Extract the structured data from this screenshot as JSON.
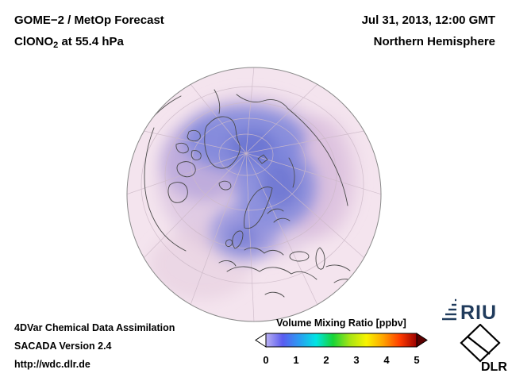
{
  "header": {
    "product": "GOME−2 / MetOp Forecast",
    "species_prefix": "ClONO",
    "species_sub": "2",
    "species_suffix": " at 55.4 hPa",
    "datetime": "Jul 31, 2013, 12:00 GMT",
    "region": "Northern Hemisphere"
  },
  "globe": {
    "base_color": "#f4e4ee",
    "field_low_color": "#cdb3da",
    "field_high_color": "#6670d0"
  },
  "colorbar": {
    "title": "Volume Mixing Ratio [ppbv]",
    "range": [
      0,
      5
    ],
    "tick_labels": [
      "0",
      "1",
      "2",
      "3",
      "4",
      "5"
    ],
    "gradient_colors": [
      "#b9b0f2",
      "#5a5cf0",
      "#2b9cf2",
      "#00e4e4",
      "#17d438",
      "#a6e414",
      "#f8f400",
      "#ffa400",
      "#ff3c00",
      "#9c0000"
    ],
    "left_arrow_color": "#ffffff",
    "right_arrow_color": "#5c0000"
  },
  "footer": {
    "assimilation": "4DVar Chemical Data Assimilation",
    "version": "SACADA Version 2.4",
    "url": "http://wdc.dlr.de"
  },
  "logos": {
    "riu_label": "RIU",
    "dlr_label": "DLR"
  }
}
